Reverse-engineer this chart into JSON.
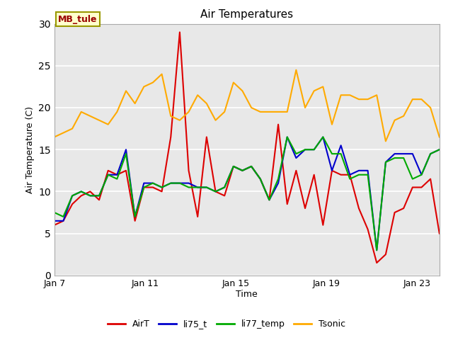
{
  "title": "Air Temperatures",
  "xlabel": "Time",
  "ylabel": "Air Temperature (C)",
  "annotation": "MB_tule",
  "ylim": [
    0,
    30
  ],
  "fig_bg": "#ffffff",
  "plot_bg": "#e8e8e8",
  "colors": {
    "AirT": "#dd0000",
    "li75_t": "#0000cc",
    "li77_temp": "#00aa00",
    "Tsonic": "#ffaa00"
  },
  "AirT": [
    6.0,
    6.5,
    8.5,
    9.5,
    10.0,
    9.0,
    12.5,
    12.0,
    12.5,
    6.5,
    10.5,
    10.5,
    10.0,
    16.5,
    29.0,
    12.5,
    7.0,
    16.5,
    10.0,
    9.5,
    13.0,
    12.5,
    13.0,
    11.5,
    9.0,
    18.0,
    8.5,
    12.5,
    8.0,
    12.0,
    6.0,
    12.5,
    12.0,
    12.0,
    8.0,
    5.5,
    1.5,
    2.5,
    7.5,
    8.0,
    10.5,
    10.5,
    11.5,
    5.0
  ],
  "li75_t": [
    6.5,
    6.5,
    9.5,
    10.0,
    9.5,
    9.5,
    12.0,
    12.0,
    15.0,
    7.0,
    11.0,
    11.0,
    10.5,
    11.0,
    11.0,
    11.0,
    10.5,
    10.5,
    10.0,
    10.5,
    13.0,
    12.5,
    13.0,
    11.5,
    9.0,
    11.0,
    16.5,
    14.0,
    15.0,
    15.0,
    16.5,
    12.5,
    15.5,
    12.0,
    12.5,
    12.5,
    3.0,
    13.5,
    14.5,
    14.5,
    14.5,
    12.0,
    14.5,
    15.0
  ],
  "li77_temp": [
    7.5,
    7.0,
    9.5,
    10.0,
    9.5,
    9.5,
    12.0,
    11.5,
    14.5,
    7.0,
    10.5,
    11.0,
    10.5,
    11.0,
    11.0,
    10.5,
    10.5,
    10.5,
    10.0,
    10.5,
    13.0,
    12.5,
    13.0,
    11.5,
    9.0,
    11.5,
    16.5,
    14.5,
    15.0,
    15.0,
    16.5,
    14.5,
    14.5,
    11.5,
    12.0,
    12.0,
    3.0,
    13.5,
    14.0,
    14.0,
    11.5,
    12.0,
    14.5,
    15.0
  ],
  "Tsonic": [
    16.5,
    17.0,
    17.5,
    19.5,
    19.0,
    18.5,
    18.0,
    19.5,
    22.0,
    20.5,
    22.5,
    23.0,
    24.0,
    19.0,
    18.5,
    19.5,
    21.5,
    20.5,
    18.5,
    19.5,
    23.0,
    22.0,
    20.0,
    19.5,
    19.5,
    19.5,
    19.5,
    24.5,
    20.0,
    22.0,
    22.5,
    18.0,
    21.5,
    21.5,
    21.0,
    21.0,
    21.5,
    16.0,
    18.5,
    19.0,
    21.0,
    21.0,
    20.0,
    16.5
  ],
  "x_tick_labels": [
    "Jan 7",
    "Jan 11",
    "Jan 15",
    "Jan 19",
    "Jan 23"
  ],
  "x_tick_positions": [
    0,
    4,
    8,
    12,
    16
  ],
  "yticks": [
    0,
    5,
    10,
    15,
    20,
    25,
    30
  ]
}
